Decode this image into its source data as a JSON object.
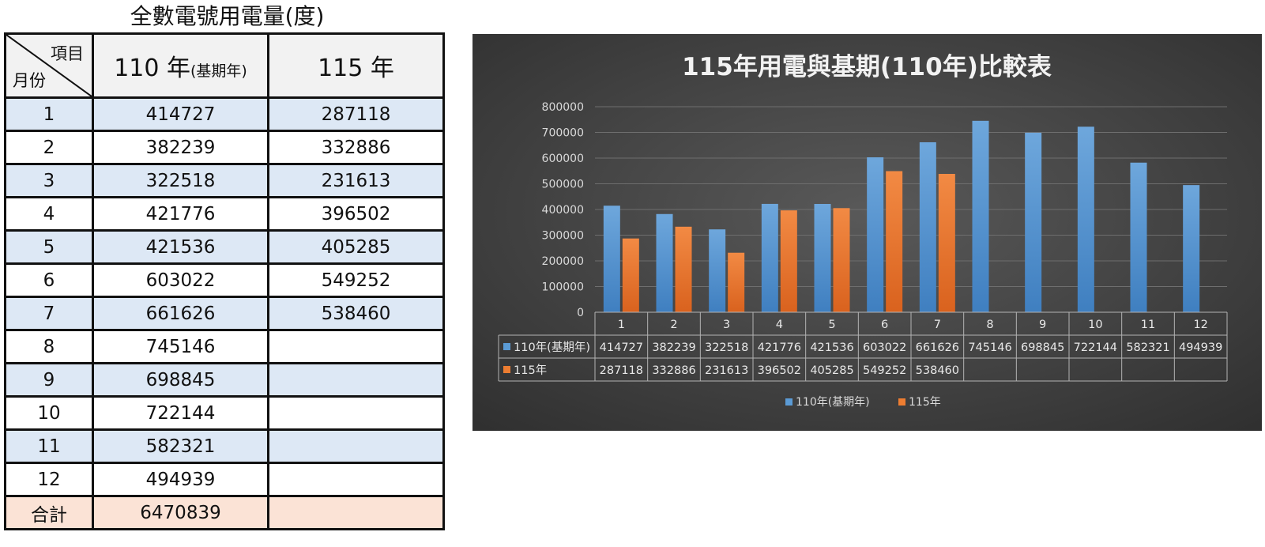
{
  "table": {
    "title": "全數電號用電量(度)",
    "corner_item": "項目",
    "corner_month": "月份",
    "col_base_main": "110 年",
    "col_base_sub": "(基期年)",
    "col_current": "115 年",
    "rows": [
      {
        "month": "1",
        "base": "414727",
        "current": "287118"
      },
      {
        "month": "2",
        "base": "382239",
        "current": "332886"
      },
      {
        "month": "3",
        "base": "322518",
        "current": "231613"
      },
      {
        "month": "4",
        "base": "421776",
        "current": "396502"
      },
      {
        "month": "5",
        "base": "421536",
        "current": "405285"
      },
      {
        "month": "6",
        "base": "603022",
        "current": "549252"
      },
      {
        "month": "7",
        "base": "661626",
        "current": "538460"
      },
      {
        "month": "8",
        "base": "745146",
        "current": ""
      },
      {
        "month": "9",
        "base": "698845",
        "current": ""
      },
      {
        "month": "10",
        "base": "722144",
        "current": ""
      },
      {
        "month": "11",
        "base": "582321",
        "current": ""
      },
      {
        "month": "12",
        "base": "494939",
        "current": ""
      }
    ],
    "total": {
      "label": "合計",
      "base": "6470839",
      "current": ""
    }
  },
  "chart_data": {
    "type": "bar",
    "title": "115年用電與基期(110年)比較表",
    "categories": [
      "1",
      "2",
      "3",
      "4",
      "5",
      "6",
      "7",
      "8",
      "9",
      "10",
      "11",
      "12"
    ],
    "series": [
      {
        "name": "110年(基期年)",
        "color": "#5b9bd5",
        "values": [
          414727,
          382239,
          322518,
          421776,
          421536,
          603022,
          661626,
          745146,
          698845,
          722144,
          582321,
          494939
        ]
      },
      {
        "name": "115年",
        "color": "#ed7d31",
        "values": [
          287118,
          332886,
          231613,
          396502,
          405285,
          549252,
          538460,
          null,
          null,
          null,
          null,
          null
        ]
      }
    ],
    "ylim": [
      0,
      800000
    ],
    "yticks": [
      "0",
      "100000",
      "200000",
      "300000",
      "400000",
      "500000",
      "600000",
      "700000",
      "800000"
    ],
    "grid": true,
    "legend": "bottom",
    "data_table": true
  }
}
